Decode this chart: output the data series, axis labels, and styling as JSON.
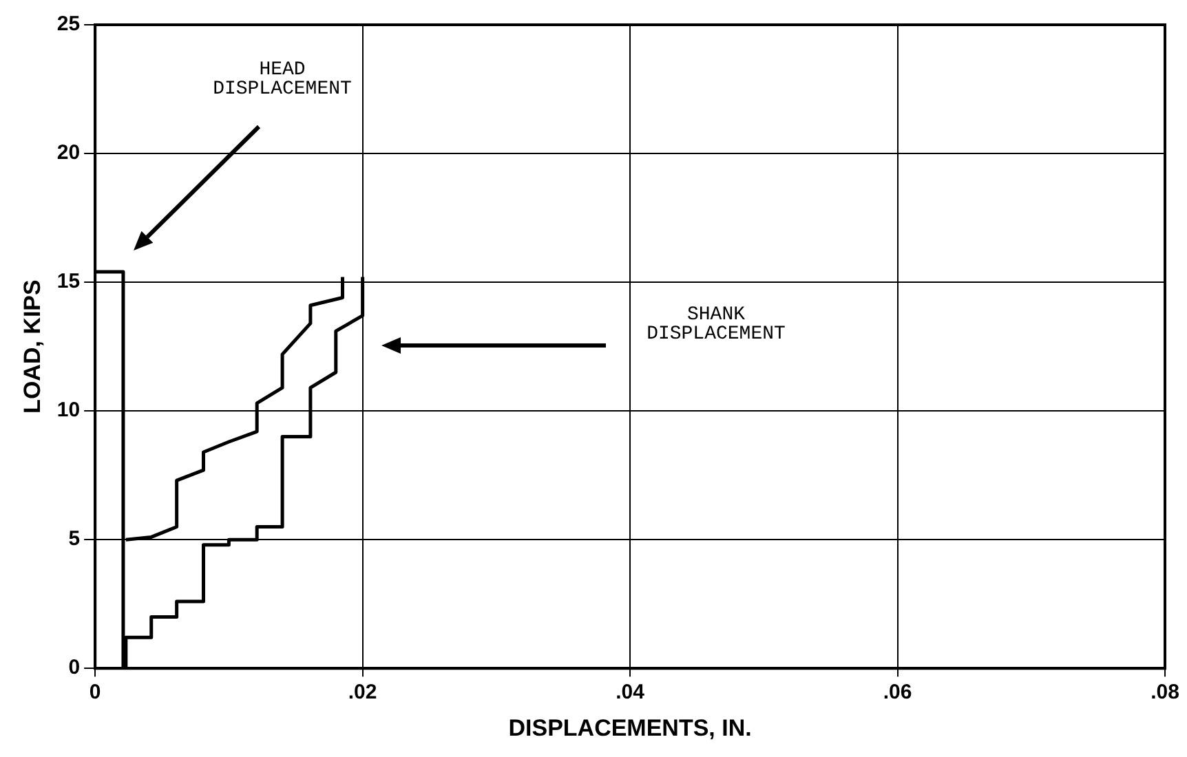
{
  "chart_data": {
    "type": "line",
    "xlabel": "DISPLACEMENTS, IN.",
    "ylabel": "LOAD, KIPS",
    "xlim": [
      0,
      0.08
    ],
    "xticks": [
      0,
      {
        "value": 0.02,
        "label": ".02"
      },
      {
        "value": 0.04,
        "label": ".04"
      },
      {
        "value": 0.06,
        "label": ".06"
      },
      {
        "value": 0.08,
        "label": ".08"
      }
    ],
    "ylim": [
      0,
      25
    ],
    "yticks": [
      0,
      5,
      10,
      15,
      20,
      25
    ],
    "grid": true,
    "legend": false,
    "marker": "none",
    "line_style": "solid",
    "series": [
      {
        "color": "#000000",
        "x": [
          0,
          0.0021,
          0.0021
        ],
        "values": [
          15.4,
          15.4,
          0
        ]
      },
      {
        "color": "#000000",
        "x": [
          0.0023,
          0.0023,
          0.0042,
          0.0042,
          0.0061,
          0.0061,
          0.0081,
          0.0081,
          0.01,
          0.01,
          0.0121,
          0.0121,
          0.014,
          0.014,
          0.0161,
          0.0161,
          0.018,
          0.018,
          0.02,
          0.02
        ],
        "values": [
          0,
          1.2,
          1.2,
          2.0,
          2.0,
          2.6,
          2.6,
          4.8,
          4.8,
          5.0,
          5.0,
          5.5,
          5.5,
          9.0,
          9.0,
          10.9,
          11.5,
          13.1,
          13.7,
          15.2
        ]
      },
      {
        "color": "#000000",
        "x": [
          0.0023,
          0.0042,
          0.0061,
          0.0061,
          0.0081,
          0.0081,
          0.01,
          0.0121,
          0.0121,
          0.014,
          0.014,
          0.0161,
          0.0161,
          0.0185,
          0.0185
        ],
        "values": [
          5.0,
          5.1,
          5.5,
          7.3,
          7.7,
          8.4,
          8.8,
          9.2,
          10.3,
          10.9,
          12.2,
          13.4,
          14.1,
          14.4,
          15.2
        ]
      }
    ],
    "annotations": [
      "HEAD DISPLACEMENT",
      "SHANK DISPLACEMENT"
    ]
  }
}
